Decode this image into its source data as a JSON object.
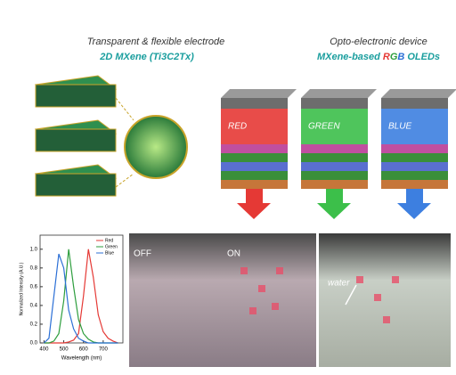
{
  "left_panel": {
    "title": "Transparent & flexible electrode",
    "subtitle": "2D MXene (Ti3C2Tx)"
  },
  "right_panel": {
    "title": "Opto-electronic device",
    "subtitle_parts": [
      {
        "text": "MXene-based",
        "color": "#1a9e9e"
      },
      {
        "text": "R",
        "color": "#e53935"
      },
      {
        "text": "G",
        "color": "#2e9e3e"
      },
      {
        "text": "B",
        "color": "#2b6fd6"
      },
      {
        "text": "OLEDs",
        "color": "#1a9e9e"
      }
    ]
  },
  "devices": [
    {
      "label": "RED",
      "color": "#e53935"
    },
    {
      "label": "GREEN",
      "color": "#3cbf4a"
    },
    {
      "label": "BLUE",
      "color": "#3d7fe0"
    }
  ],
  "photos": {
    "labels": [
      "OFF",
      "ON",
      "water"
    ]
  },
  "chart_data": {
    "type": "line",
    "xlabel": "Wavelength (nm)",
    "ylabel": "Normalized Intensity (A.U.)",
    "x": [
      400,
      425,
      450,
      475,
      500,
      525,
      550,
      575,
      600,
      625,
      650,
      675,
      700,
      725,
      750,
      775
    ],
    "series": [
      {
        "name": "Red",
        "color": "#e53935",
        "values": [
          0,
          0,
          0,
          0,
          0,
          0.01,
          0.03,
          0.1,
          0.5,
          1.0,
          0.7,
          0.3,
          0.12,
          0.05,
          0.02,
          0
        ]
      },
      {
        "name": "Green",
        "color": "#2e9e3e",
        "values": [
          0,
          0,
          0.02,
          0.1,
          0.45,
          1.0,
          0.6,
          0.25,
          0.1,
          0.04,
          0.01,
          0,
          0,
          0,
          0,
          0
        ]
      },
      {
        "name": "Blue",
        "color": "#2b6fd6",
        "values": [
          0,
          0.05,
          0.5,
          0.95,
          0.8,
          0.35,
          0.15,
          0.05,
          0.02,
          0,
          0,
          0,
          0,
          0,
          0,
          0
        ]
      }
    ],
    "xlim": [
      380,
      800
    ],
    "ylim": [
      0,
      1.15
    ],
    "xticks": [
      400,
      500,
      600,
      700
    ],
    "yticks": [
      {
        "value": 0,
        "label": "0.0"
      },
      0.2,
      0.4,
      0.6,
      0.8,
      {
        "value": 1,
        "label": "1.0"
      }
    ]
  }
}
